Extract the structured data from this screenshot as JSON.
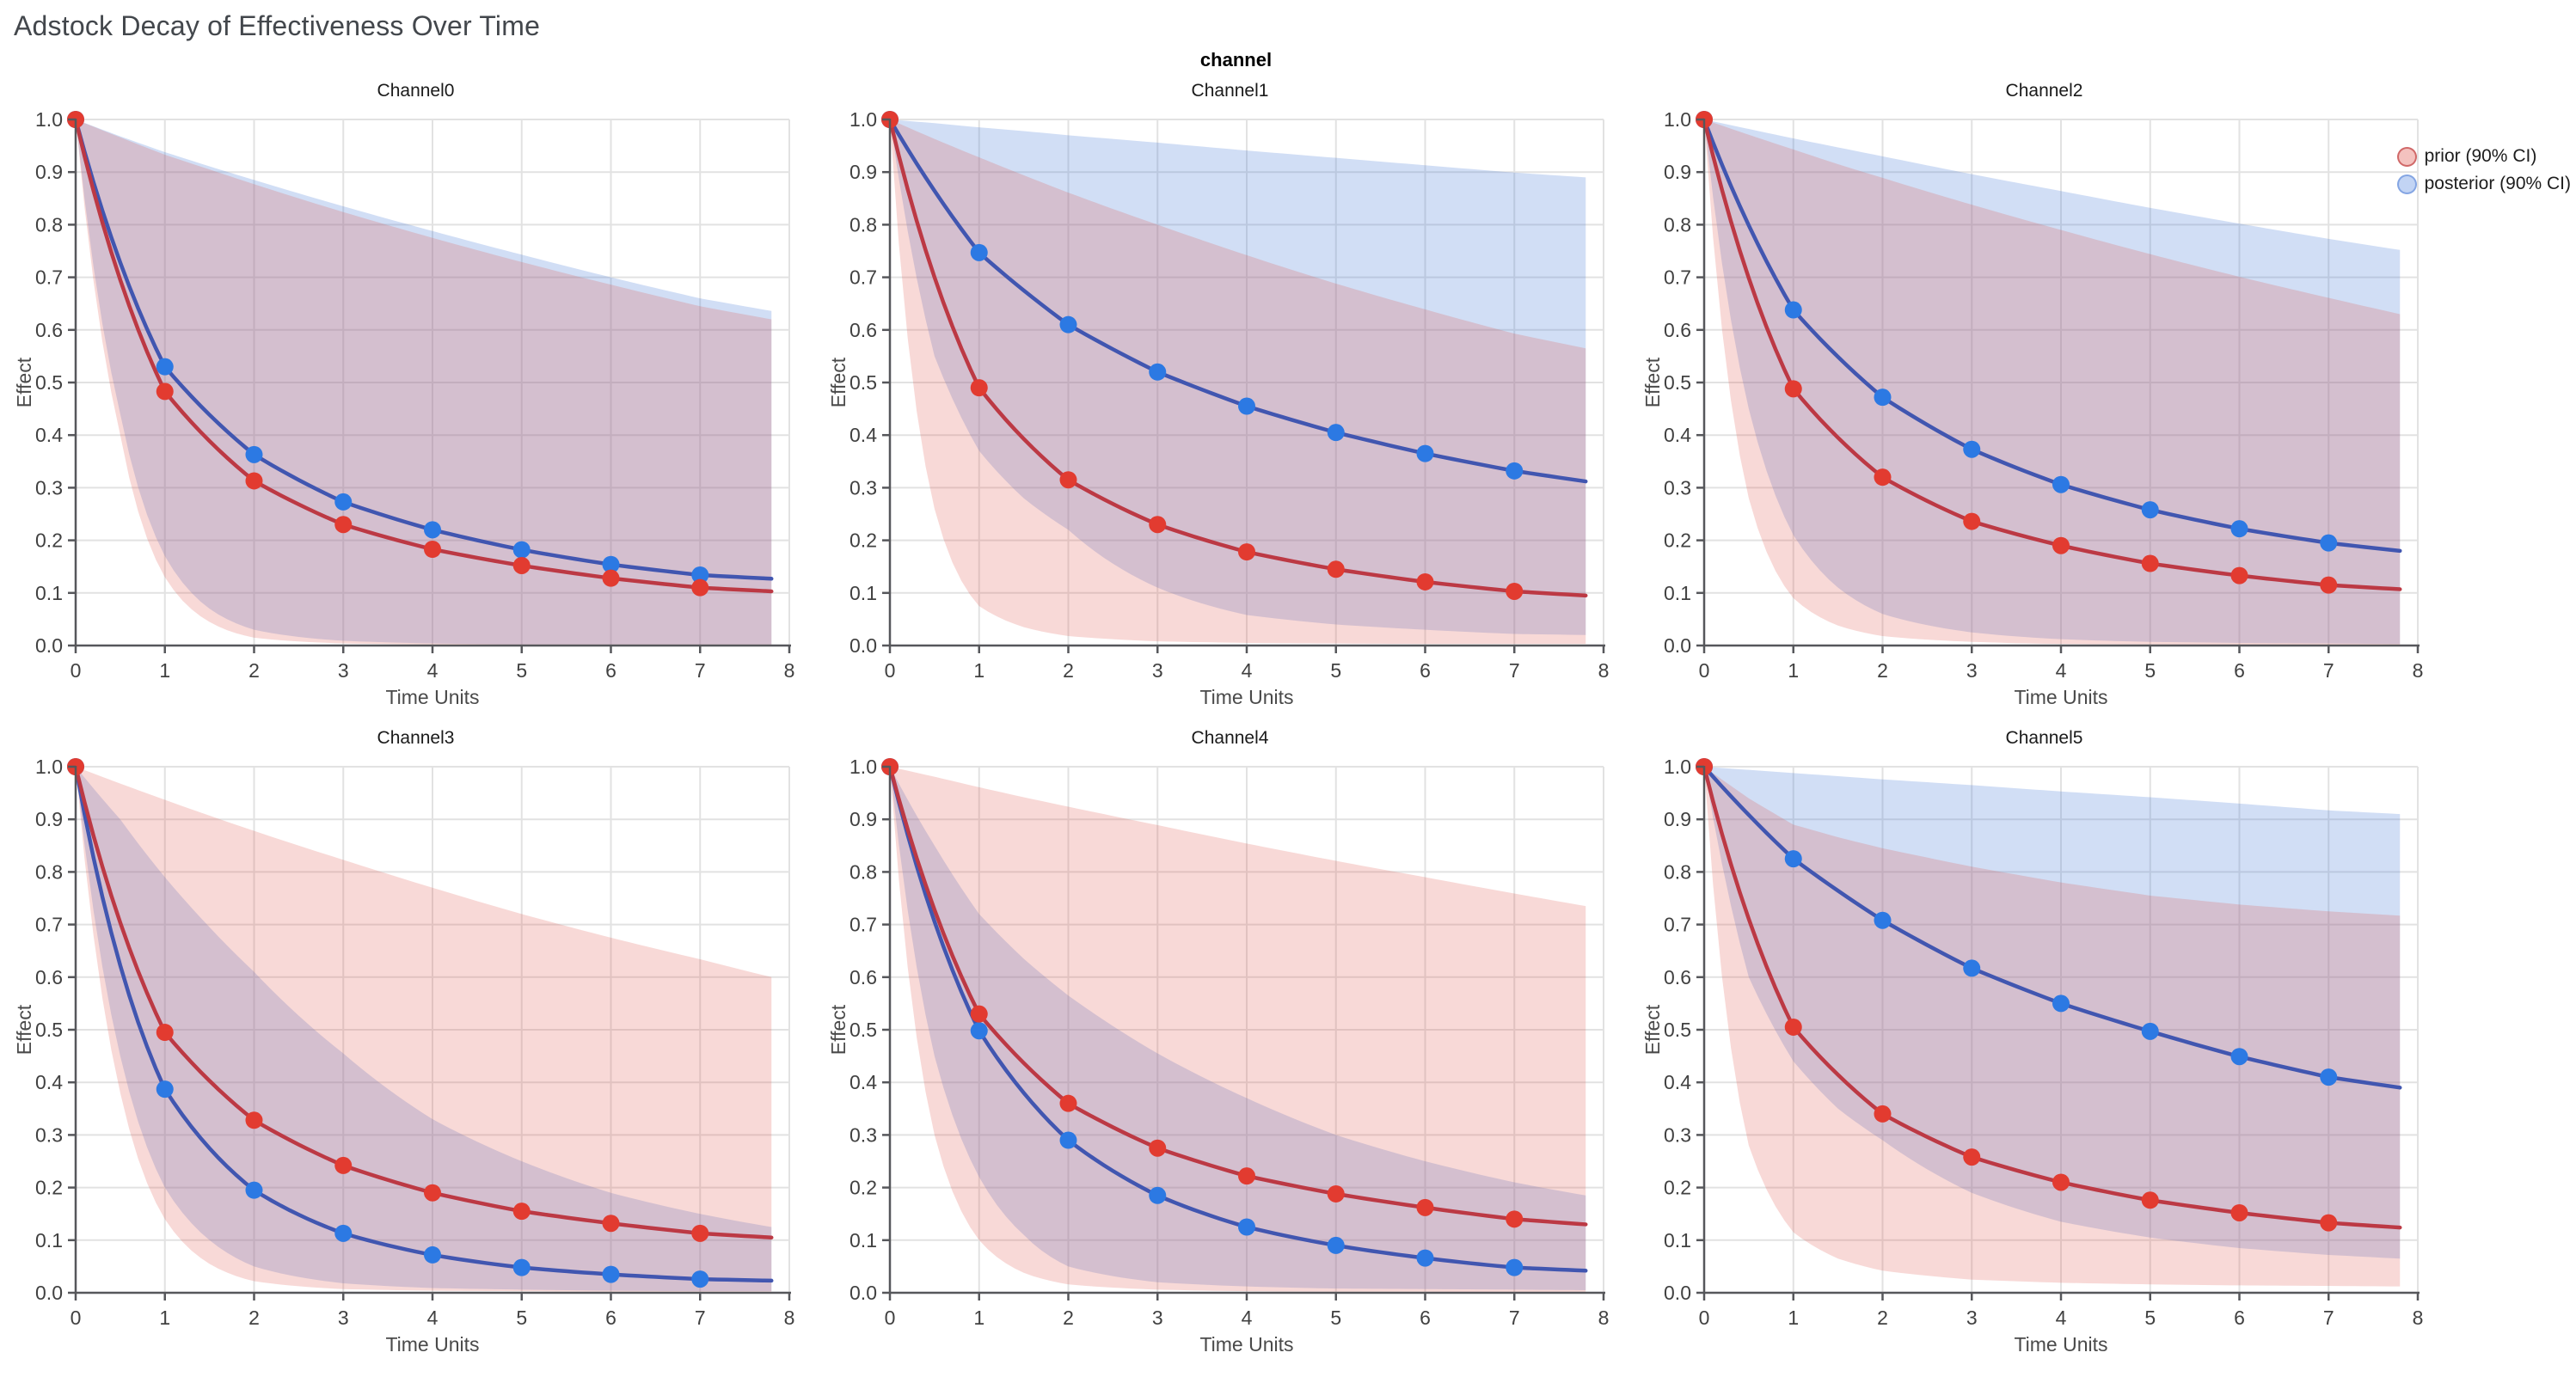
{
  "page": {
    "title": "Adstock Decay of Effectiveness Over Time",
    "facet_label": "channel"
  },
  "legend": {
    "items": [
      {
        "label": "prior (90% CI)",
        "fill": "rgba(223,80,73,0.35)",
        "stroke": "rgba(205,95,95,0.9)"
      },
      {
        "label": "posterior (90% CI)",
        "fill": "rgba(120,160,230,0.45)",
        "stroke": "rgba(125,160,225,0.9)"
      }
    ]
  },
  "colors": {
    "prior_line": "#bc3944",
    "prior_marker": "#e23b30",
    "posterior_line": "#4156b0",
    "posterior_marker": "#2c79e3",
    "prior_band_fill": "rgba(223,80,73,0.22)",
    "posterior_band_fill": "rgba(77,126,217,0.26)",
    "gridline": "#e2e2e2",
    "axis_line": "#56575b",
    "tick_label": "#414141",
    "axis_title": "#4a4a4a"
  },
  "axes": {
    "x_title": "Time Units",
    "y_title": "Effect",
    "x_ticks": [
      0,
      1,
      2,
      3,
      4,
      5,
      6,
      7,
      8
    ],
    "y_ticks": [
      0.0,
      0.1,
      0.2,
      0.3,
      0.4,
      0.5,
      0.6,
      0.7,
      0.8,
      0.9,
      1.0
    ],
    "x_max": 8,
    "y_max": 1.0,
    "curve_t": [
      0,
      1,
      2,
      3,
      4,
      5,
      6,
      7
    ],
    "line_end_t": 7.8,
    "band_t": [
      0,
      0.5,
      1,
      1.5,
      2,
      3,
      4,
      5,
      6,
      7,
      7.8
    ]
  },
  "chart_data": [
    {
      "type": "line",
      "title": "Channel0",
      "prior": {
        "values": [
          1,
          0.483,
          0.313,
          0.23,
          0.183,
          0.152,
          0.128,
          0.11
        ],
        "end": 0.103
      },
      "posterior": {
        "values": [
          1,
          0.53,
          0.363,
          0.273,
          0.22,
          0.182,
          0.154,
          0.134
        ],
        "end": 0.127
      },
      "prior_band": {
        "upper": [
          1,
          0.966,
          0.933,
          0.905,
          0.877,
          0.824,
          0.775,
          0.729,
          0.686,
          0.645,
          0.62
        ],
        "lower": [
          1,
          0.4,
          0.13,
          0.045,
          0.015,
          0.004,
          0.002,
          0.001,
          0.001,
          0.001,
          0.001
        ]
      },
      "posterior_band": {
        "upper": [
          1,
          0.968,
          0.938,
          0.911,
          0.885,
          0.835,
          0.788,
          0.743,
          0.7,
          0.66,
          0.636
        ],
        "lower": [
          1,
          0.44,
          0.17,
          0.07,
          0.03,
          0.009,
          0.004,
          0.002,
          0.002,
          0.002,
          0.002
        ]
      }
    },
    {
      "type": "line",
      "title": "Channel1",
      "prior": {
        "values": [
          1,
          0.49,
          0.315,
          0.23,
          0.178,
          0.145,
          0.121,
          0.103
        ],
        "end": 0.095
      },
      "posterior": {
        "values": [
          1,
          0.747,
          0.61,
          0.52,
          0.455,
          0.405,
          0.365,
          0.332
        ],
        "end": 0.312
      },
      "prior_band": {
        "upper": [
          1,
          0.963,
          0.928,
          0.894,
          0.861,
          0.8,
          0.742,
          0.688,
          0.639,
          0.593,
          0.565
        ],
        "lower": [
          1,
          0.26,
          0.075,
          0.035,
          0.018,
          0.008,
          0.005,
          0.004,
          0.003,
          0.003,
          0.003
        ]
      },
      "posterior_band": {
        "upper": [
          1,
          0.993,
          0.985,
          0.978,
          0.97,
          0.956,
          0.941,
          0.927,
          0.913,
          0.899,
          0.89
        ],
        "lower": [
          1,
          0.55,
          0.37,
          0.28,
          0.22,
          0.11,
          0.058,
          0.04,
          0.03,
          0.022,
          0.02
        ]
      }
    },
    {
      "type": "line",
      "title": "Channel2",
      "prior": {
        "values": [
          1,
          0.488,
          0.32,
          0.236,
          0.19,
          0.156,
          0.133,
          0.115
        ],
        "end": 0.107
      },
      "posterior": {
        "values": [
          1,
          0.638,
          0.472,
          0.373,
          0.306,
          0.258,
          0.222,
          0.195
        ],
        "end": 0.18
      },
      "prior_band": {
        "upper": [
          1,
          0.971,
          0.943,
          0.915,
          0.889,
          0.838,
          0.79,
          0.744,
          0.701,
          0.661,
          0.63
        ],
        "lower": [
          1,
          0.28,
          0.09,
          0.038,
          0.018,
          0.007,
          0.003,
          0.002,
          0.001,
          0.001,
          0.001
        ]
      },
      "posterior_band": {
        "upper": [
          1,
          0.982,
          0.964,
          0.947,
          0.93,
          0.896,
          0.864,
          0.832,
          0.802,
          0.773,
          0.752
        ],
        "lower": [
          1,
          0.45,
          0.21,
          0.11,
          0.06,
          0.025,
          0.012,
          0.007,
          0.005,
          0.004,
          0.003
        ]
      }
    },
    {
      "type": "line",
      "title": "Channel3",
      "prior": {
        "values": [
          1,
          0.495,
          0.328,
          0.242,
          0.19,
          0.155,
          0.132,
          0.113
        ],
        "end": 0.105
      },
      "posterior": {
        "values": [
          1,
          0.387,
          0.195,
          0.113,
          0.072,
          0.048,
          0.035,
          0.026
        ],
        "end": 0.023
      },
      "prior_band": {
        "upper": [
          1,
          0.968,
          0.937,
          0.907,
          0.878,
          0.823,
          0.77,
          0.72,
          0.675,
          0.634,
          0.6
        ],
        "lower": [
          1,
          0.38,
          0.14,
          0.055,
          0.022,
          0.007,
          0.004,
          0.003,
          0.002,
          0.002,
          0.002
        ]
      },
      "posterior_band": {
        "upper": [
          1,
          0.9,
          0.79,
          0.695,
          0.61,
          0.455,
          0.33,
          0.25,
          0.19,
          0.15,
          0.125
        ],
        "lower": [
          1,
          0.45,
          0.2,
          0.1,
          0.05,
          0.018,
          0.009,
          0.006,
          0.004,
          0.003,
          0.003
        ]
      }
    },
    {
      "type": "line",
      "title": "Channel4",
      "prior": {
        "values": [
          1,
          0.53,
          0.36,
          0.275,
          0.222,
          0.188,
          0.162,
          0.14
        ],
        "end": 0.13
      },
      "posterior": {
        "values": [
          1,
          0.498,
          0.29,
          0.185,
          0.125,
          0.09,
          0.066,
          0.048
        ],
        "end": 0.042
      },
      "prior_band": {
        "upper": [
          1,
          0.981,
          0.961,
          0.942,
          0.924,
          0.889,
          0.854,
          0.821,
          0.79,
          0.759,
          0.735
        ],
        "lower": [
          1,
          0.3,
          0.1,
          0.038,
          0.016,
          0.006,
          0.003,
          0.002,
          0.002,
          0.001,
          0.001
        ]
      },
      "posterior_band": {
        "upper": [
          1,
          0.85,
          0.72,
          0.635,
          0.565,
          0.455,
          0.37,
          0.3,
          0.25,
          0.21,
          0.185
        ],
        "lower": [
          1,
          0.45,
          0.22,
          0.11,
          0.05,
          0.02,
          0.012,
          0.008,
          0.007,
          0.006,
          0.005
        ]
      }
    },
    {
      "type": "line",
      "title": "Channel5",
      "prior": {
        "values": [
          1,
          0.505,
          0.34,
          0.258,
          0.21,
          0.176,
          0.152,
          0.133
        ],
        "end": 0.124
      },
      "posterior": {
        "values": [
          1,
          0.825,
          0.708,
          0.617,
          0.55,
          0.497,
          0.449,
          0.41
        ],
        "end": 0.39
      },
      "prior_band": {
        "upper": [
          1,
          0.94,
          0.89,
          0.866,
          0.845,
          0.81,
          0.78,
          0.755,
          0.738,
          0.725,
          0.717
        ],
        "lower": [
          1,
          0.28,
          0.115,
          0.065,
          0.042,
          0.025,
          0.019,
          0.016,
          0.014,
          0.013,
          0.012
        ]
      },
      "posterior_band": {
        "upper": [
          1,
          0.994,
          0.988,
          0.982,
          0.976,
          0.965,
          0.953,
          0.942,
          0.93,
          0.917,
          0.91
        ],
        "lower": [
          1,
          0.6,
          0.44,
          0.35,
          0.29,
          0.19,
          0.135,
          0.105,
          0.085,
          0.072,
          0.065
        ]
      }
    }
  ]
}
